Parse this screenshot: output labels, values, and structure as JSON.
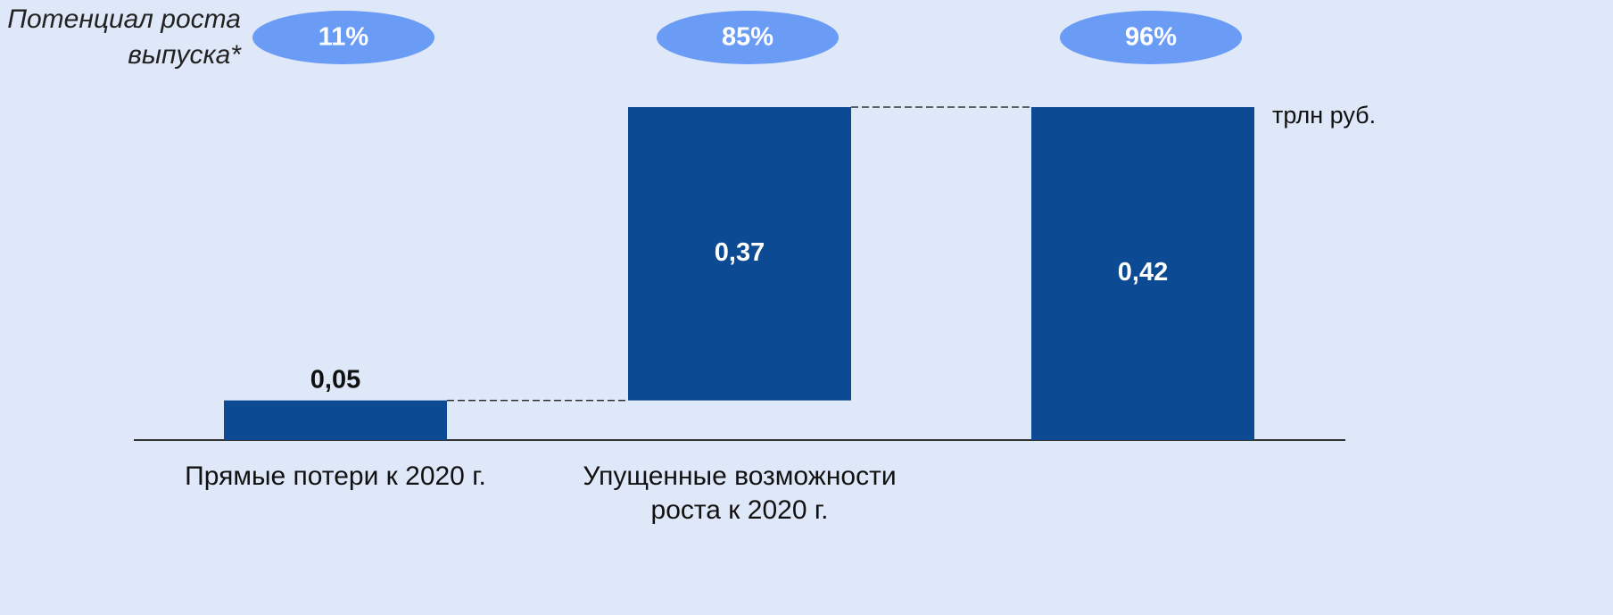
{
  "chart_data": {
    "type": "waterfall",
    "categories": [
      "Прямые потери к 2020 г.",
      "Упущенные возможности роста к 2020 г.",
      null
    ],
    "values": [
      0.05,
      0.37,
      0.42
    ],
    "value_labels": [
      "0,05",
      "0,37",
      "0,42"
    ],
    "measures": [
      "relative",
      "relative",
      "total"
    ],
    "color": "#0d4a94",
    "ylim": [
      0,
      0.42
    ],
    "unit_label": "трлн руб.",
    "growth_potential": {
      "label": "Потенциал роста выпуска*",
      "values": [
        11,
        85,
        96
      ],
      "value_labels": [
        "11%",
        "85%",
        "96%"
      ],
      "color": "#6a9cf5"
    }
  }
}
